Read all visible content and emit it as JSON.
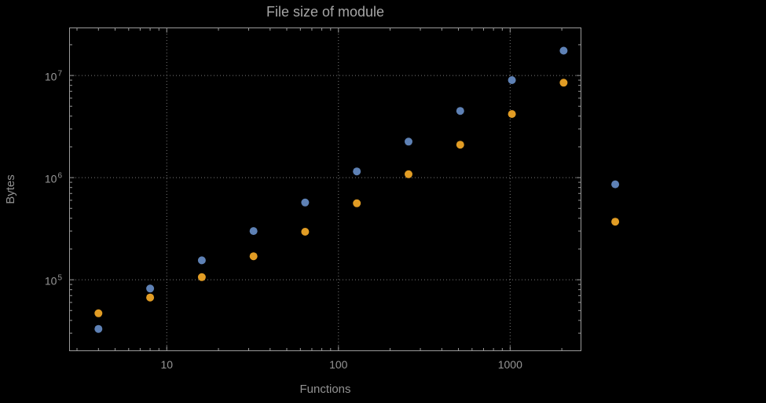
{
  "chart": {
    "title": "File size of module",
    "xlabel": "Functions",
    "ylabel": "Bytes"
  },
  "chart_data": {
    "type": "scatter",
    "title": "File size of module",
    "xlabel": "Functions",
    "ylabel": "Bytes",
    "x_scale": "log",
    "y_scale": "log",
    "grid": "dotted-at-major-ticks",
    "legend": "none",
    "background": "#000000",
    "frame_color": "#9a9a9a",
    "grid_color": "#7a7a7a",
    "x_range": [
      2.7,
      2600
    ],
    "y_range": [
      20000,
      29500000
    ],
    "x_ticks": [
      10,
      100,
      1000
    ],
    "x_tick_labels": [
      "10",
      "100",
      "1000"
    ],
    "y_ticks": [
      100000,
      1000000,
      10000000
    ],
    "y_tick_labels": [
      "10^5",
      "10^6",
      "10^7"
    ],
    "series": [
      {
        "name": "series-1-blue",
        "color": "#5E81B5",
        "points": [
          [
            4,
            33000
          ],
          [
            8,
            82000
          ],
          [
            16,
            155000
          ],
          [
            32,
            300000
          ],
          [
            64,
            570000
          ],
          [
            128,
            1150000
          ],
          [
            256,
            2250000
          ],
          [
            512,
            4500000
          ],
          [
            1024,
            9000000
          ],
          [
            2048,
            17500000
          ],
          [
            4096,
            860000
          ]
        ]
      },
      {
        "name": "series-2-orange",
        "color": "#E19C24",
        "points": [
          [
            4,
            47000
          ],
          [
            8,
            67000
          ],
          [
            16,
            106000
          ],
          [
            32,
            170000
          ],
          [
            64,
            295000
          ],
          [
            128,
            560000
          ],
          [
            256,
            1080000
          ],
          [
            512,
            2100000
          ],
          [
            1024,
            4200000
          ],
          [
            2048,
            8500000
          ],
          [
            4096,
            370000
          ]
        ]
      }
    ]
  }
}
